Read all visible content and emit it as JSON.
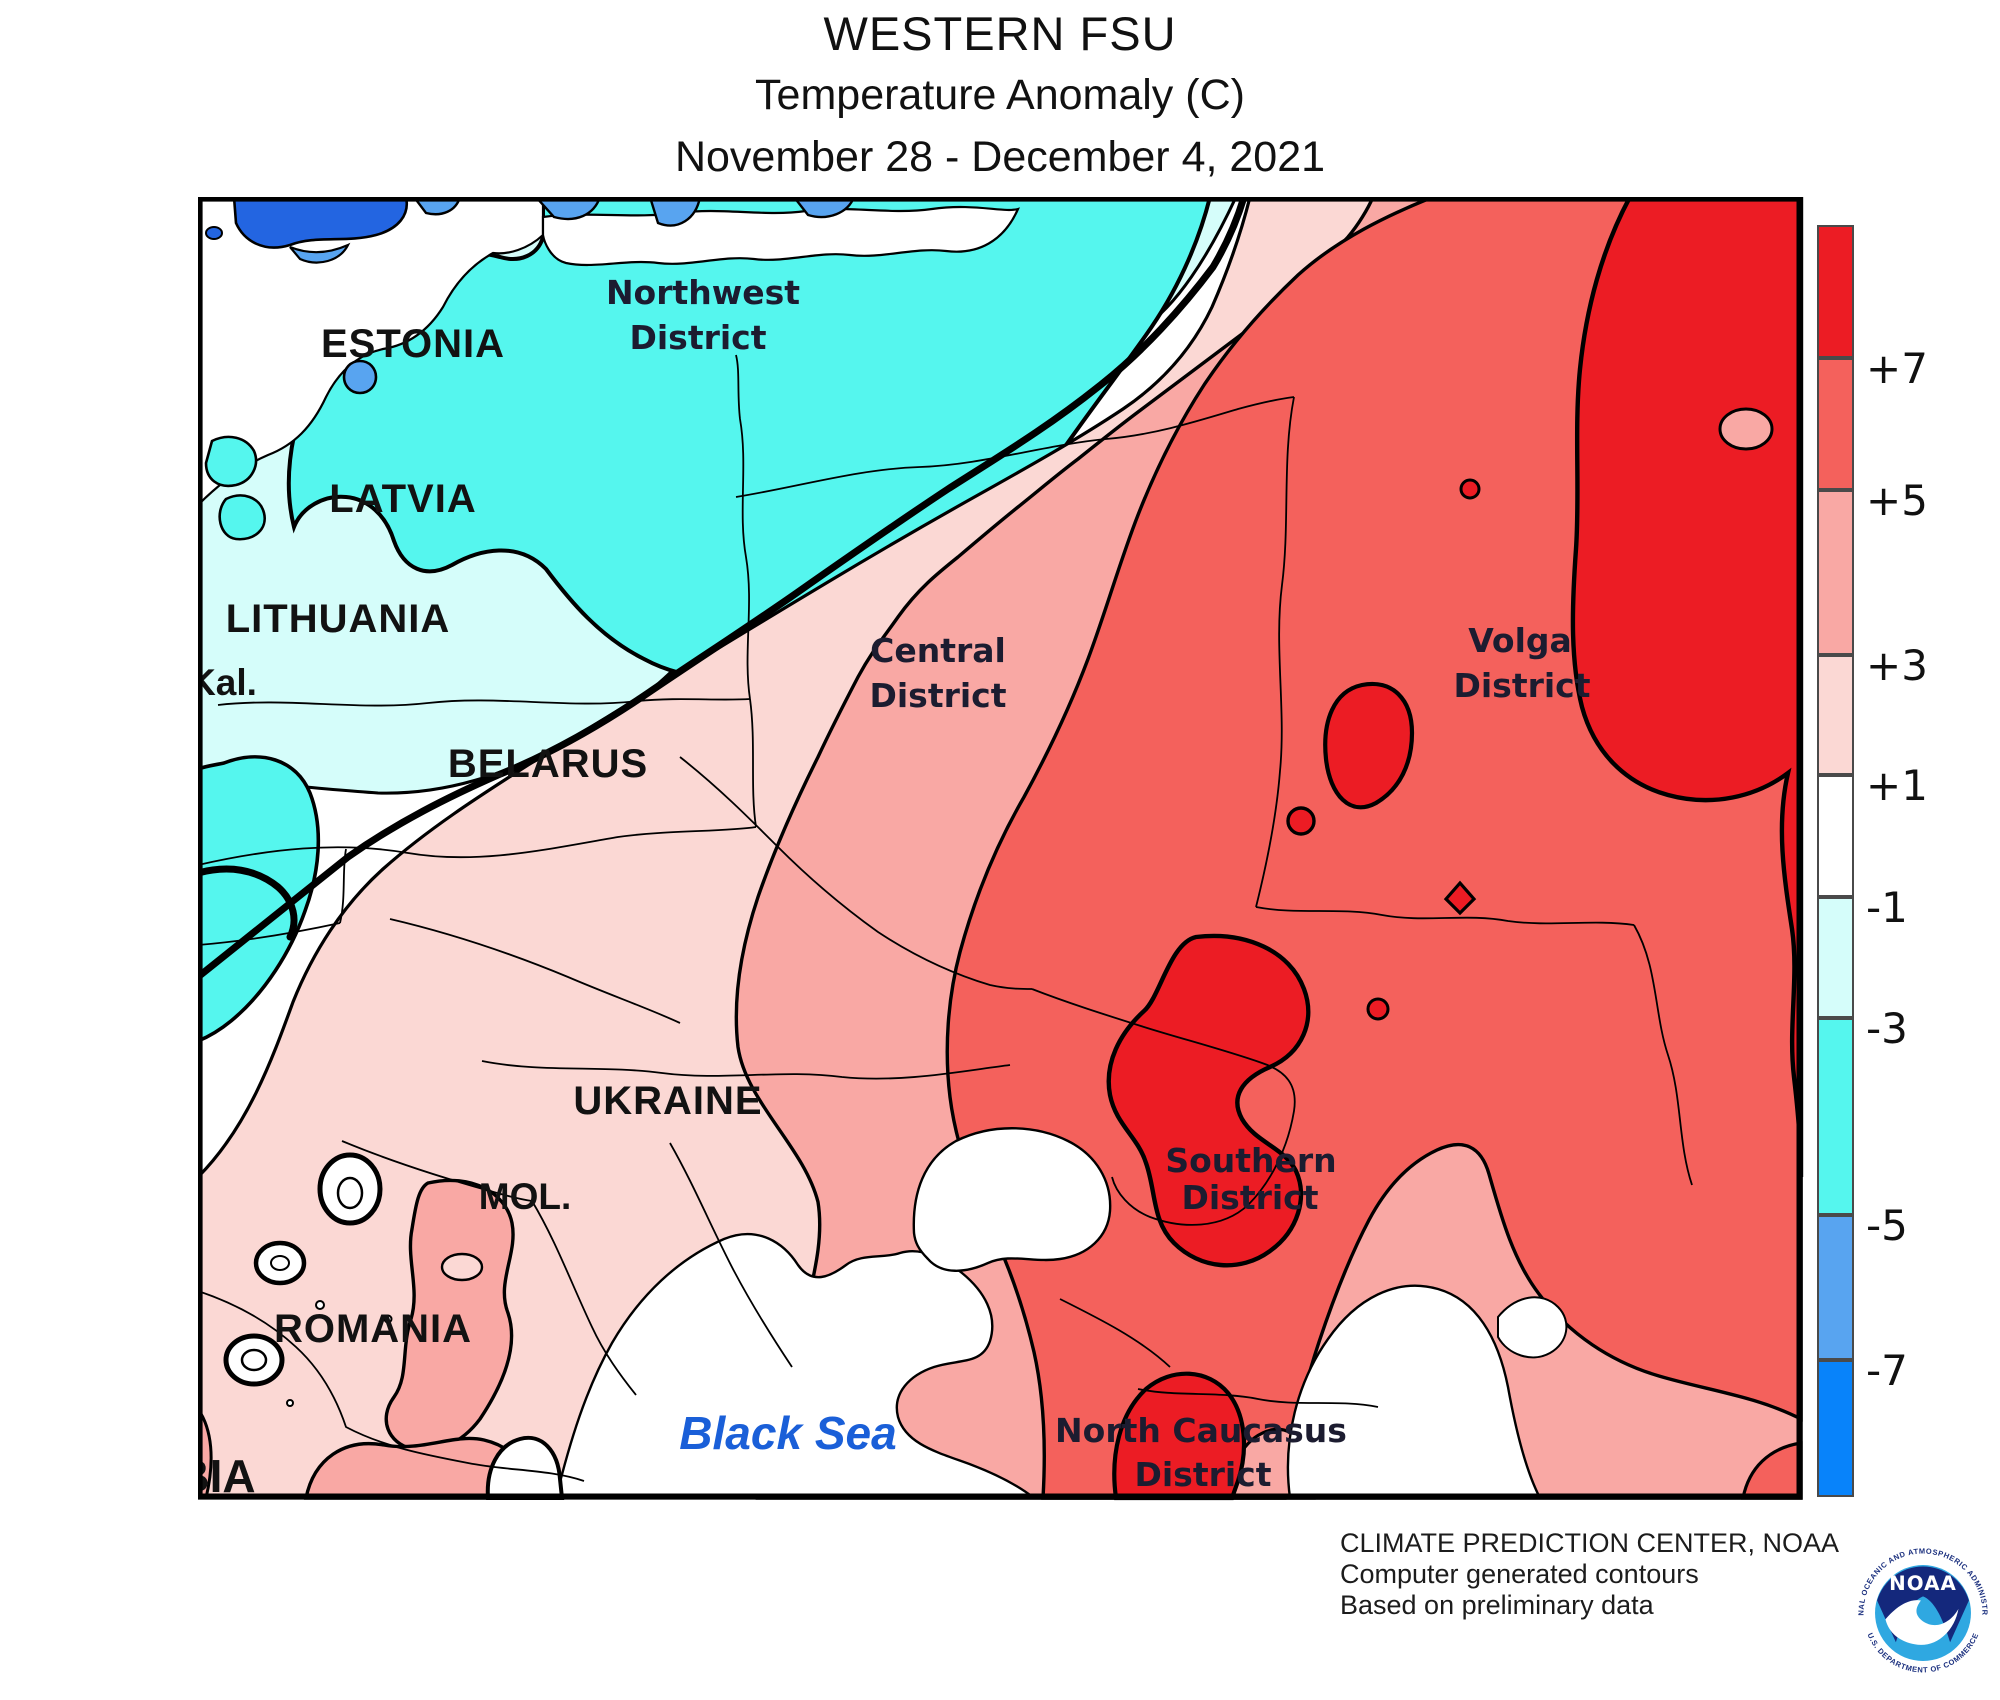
{
  "header": {
    "title": "WESTERN FSU",
    "subtitle": "Temperature Anomaly (C)",
    "date_range": "November 28 - December 4, 2021"
  },
  "map": {
    "countries": [
      {
        "label": "ESTONIA"
      },
      {
        "label": "LATVIA"
      },
      {
        "label": "LITHUANIA"
      },
      {
        "label": "Kal."
      },
      {
        "label": "BELARUS"
      },
      {
        "label": "UKRAINE"
      },
      {
        "label": "MOL."
      },
      {
        "label": "ROMANIA"
      },
      {
        "label": "BIA"
      }
    ],
    "districts": [
      {
        "line1": "Northwest",
        "line2": "District"
      },
      {
        "line1": "Central",
        "line2": "District"
      },
      {
        "line1": "Volga",
        "line2": "District"
      },
      {
        "line1": "Southern",
        "line2": "District"
      },
      {
        "line1": "North Caucasus",
        "line2": "District"
      }
    ],
    "sea_label": "Black Sea"
  },
  "legend": {
    "labels": [
      "+7",
      "+5",
      "+3",
      "+1",
      "-1",
      "-3",
      "-5",
      "-7"
    ],
    "colors": [
      "#EC1C24",
      "#F4615C",
      "#F9A8A4",
      "#FBD8D4",
      "#FFFFFF",
      "#D5FDFA",
      "#55F6EE",
      "#58A4F0",
      "#0883FA"
    ],
    "extra_colors": {
      "royal_blue_patch": "#2365E1",
      "sea_white": "#FFFFFF",
      "contour_black": "#000000"
    }
  },
  "credits": {
    "line1": "CLIMATE PREDICTION CENTER, NOAA",
    "line2": "Computer generated contours",
    "line3": "Based on preliminary data"
  },
  "logo": {
    "name": "NOAA",
    "ring_top": "NATIONAL OCEANIC AND ATMOSPHERIC ADMINISTRATION",
    "ring_bottom": "U.S. DEPARTMENT OF COMMERCE"
  }
}
